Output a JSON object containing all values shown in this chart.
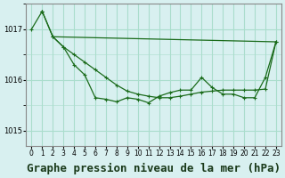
{
  "background_color": "#d8f0f0",
  "grid_color": "#aaddcc",
  "line_color": "#1a6b1a",
  "marker_color": "#1a6b1a",
  "xlabel": "Graphe pression niveau de la mer (hPa)",
  "xlabel_fontsize": 9,
  "yticks": [
    1015,
    1016,
    1017
  ],
  "ylim": [
    1014.7,
    1017.5
  ],
  "xlim": [
    -0.5,
    23.5
  ],
  "xtick_labels": [
    "0",
    "1",
    "2",
    "3",
    "4",
    "5",
    "6",
    "7",
    "8",
    "9",
    "10",
    "11",
    "12",
    "13",
    "14",
    "15",
    "16",
    "17",
    "18",
    "19",
    "20",
    "21",
    "22",
    "23"
  ],
  "series1_x": [
    0,
    1,
    2,
    3,
    4,
    5,
    6,
    7,
    8,
    9,
    10,
    11,
    12,
    13,
    14,
    15,
    16,
    17,
    18,
    19,
    20,
    21,
    22,
    23
  ],
  "series1_y": [
    1017.0,
    1017.35,
    1016.85,
    1016.65,
    1016.55,
    1016.1,
    1015.65,
    1015.6,
    1015.55,
    1015.6,
    1015.6,
    1015.55,
    1015.65,
    1015.75,
    1015.8,
    1015.8,
    1015.85,
    1015.8,
    1015.75,
    1015.7,
    1015.65,
    1015.65,
    1016.05,
    1016.75
  ],
  "series2_x": [
    0,
    1,
    2,
    3,
    4,
    5,
    6,
    7,
    8,
    9,
    10,
    11,
    12,
    13,
    14,
    15,
    16,
    17,
    18,
    19,
    20,
    21,
    22,
    23
  ],
  "series2_y": [
    1017.0,
    1017.35,
    1016.85,
    1016.7,
    1016.55,
    1016.1,
    1015.65,
    1015.6,
    1015.55,
    1015.6,
    1015.6,
    1015.55,
    1015.7,
    1015.75,
    1015.8,
    1015.8,
    1016.05,
    1015.85,
    1015.7,
    1015.7,
    1015.65,
    1015.65,
    1016.05,
    1016.75
  ],
  "series3_x": [
    1,
    2,
    3,
    4,
    5,
    6,
    7,
    8,
    9,
    10,
    11,
    12,
    13,
    14,
    15,
    16,
    17,
    18,
    19,
    20,
    21,
    22,
    23
  ],
  "series3_y": [
    1016.85,
    1016.85,
    1016.65,
    1016.3,
    1016.1,
    1015.65,
    1015.6,
    1015.55,
    1015.63,
    1015.63,
    1015.55,
    1015.65,
    1015.75,
    1015.8,
    1015.8,
    1016.05,
    1015.85,
    1015.73,
    1015.73,
    1015.65,
    1015.65,
    1016.05,
    1016.75
  ]
}
